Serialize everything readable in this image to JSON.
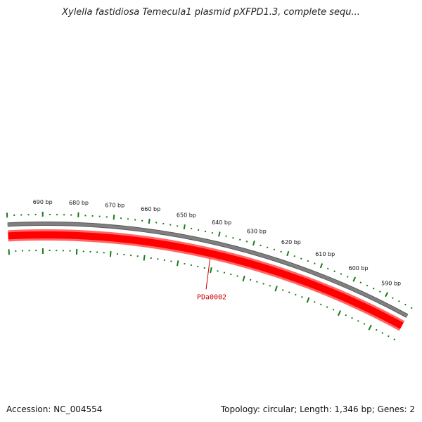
{
  "title": "Xylella fastidiosa Temecula1 plasmid pXFPD1.3, complete sequ...",
  "footer": {
    "accession": "Accession: NC_004554",
    "summary": "Topology: circular; Length: 1,346 bp; Genes: 2"
  },
  "plasmid": {
    "length_bp": 1346,
    "visible_range_bp": [
      582,
      700
    ],
    "tick_minor_bp": 2,
    "tick_major_bp": 10,
    "tick_labels": [
      "590 bp",
      "600 bp",
      "610 bp",
      "620 bp",
      "630 bp",
      "640 bp",
      "650 bp",
      "660 bp",
      "670 bp",
      "680 bp",
      "690 bp"
    ],
    "tick_values": [
      590,
      600,
      610,
      620,
      630,
      640,
      650,
      660,
      670,
      680,
      690
    ]
  },
  "genes": [
    {
      "name": "PDa0002",
      "label": "PDa0002",
      "color": "#cc0000",
      "label_anchor_bp": 641
    }
  ],
  "colors": {
    "backbone": "#808080",
    "gene_fill": "#ff0000",
    "gene_edge": "#ff6666",
    "tick": "#1a7a1a",
    "gene_label": "#cc0000"
  }
}
